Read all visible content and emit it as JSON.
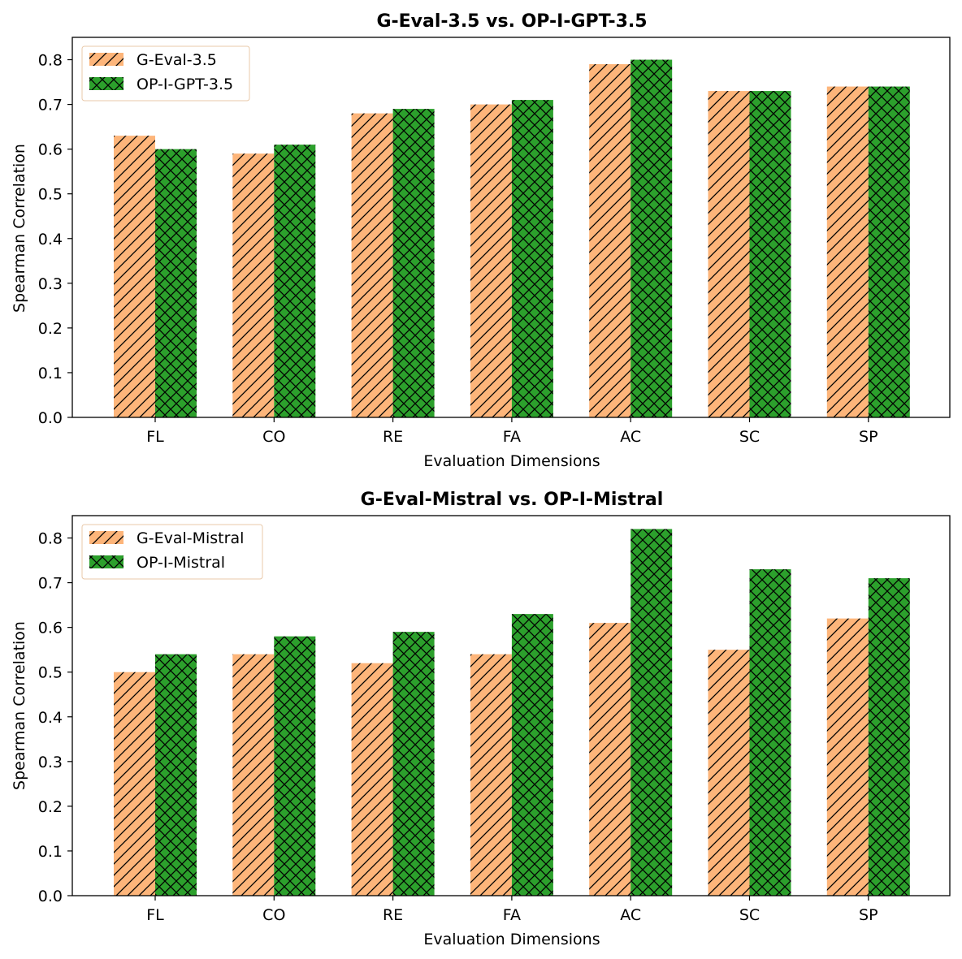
{
  "colors": {
    "g_eval": "#fdb57a",
    "op_i": "#2ca02c",
    "legend_border": "#e8c8a8"
  },
  "chart_data": [
    {
      "type": "bar",
      "title": "G-Eval-3.5 vs. OP-I-GPT-3.5",
      "xlabel": "Evaluation Dimensions",
      "ylabel": "Spearman Correlation",
      "categories": [
        "FL",
        "CO",
        "RE",
        "FA",
        "AC",
        "SC",
        "SP"
      ],
      "ylim": [
        0,
        0.8
      ],
      "yticks": [
        "0.0",
        "0.1",
        "0.2",
        "0.3",
        "0.4",
        "0.5",
        "0.6",
        "0.7",
        "0.8"
      ],
      "legend_position": "upper left",
      "series": [
        {
          "name": "G-Eval-3.5",
          "values": [
            0.63,
            0.59,
            0.68,
            0.7,
            0.79,
            0.73,
            0.74
          ],
          "color": "#fdb57a",
          "hatch": "diagonal"
        },
        {
          "name": "OP-I-GPT-3.5",
          "values": [
            0.6,
            0.61,
            0.69,
            0.71,
            0.8,
            0.73,
            0.74
          ],
          "color": "#2ca02c",
          "hatch": "crosshatch"
        }
      ]
    },
    {
      "type": "bar",
      "title": "G-Eval-Mistral vs. OP-I-Mistral",
      "xlabel": "Evaluation Dimensions",
      "ylabel": "Spearman Correlation",
      "categories": [
        "FL",
        "CO",
        "RE",
        "FA",
        "AC",
        "SC",
        "SP"
      ],
      "ylim": [
        0,
        0.8
      ],
      "yticks": [
        "0.0",
        "0.1",
        "0.2",
        "0.3",
        "0.4",
        "0.5",
        "0.6",
        "0.7",
        "0.8"
      ],
      "legend_position": "upper left",
      "series": [
        {
          "name": "G-Eval-Mistral",
          "values": [
            0.5,
            0.54,
            0.52,
            0.54,
            0.61,
            0.55,
            0.62
          ],
          "color": "#fdb57a",
          "hatch": "diagonal"
        },
        {
          "name": "OP-I-Mistral",
          "values": [
            0.54,
            0.58,
            0.59,
            0.63,
            0.82,
            0.73,
            0.71
          ],
          "color": "#2ca02c",
          "hatch": "crosshatch"
        }
      ]
    }
  ]
}
